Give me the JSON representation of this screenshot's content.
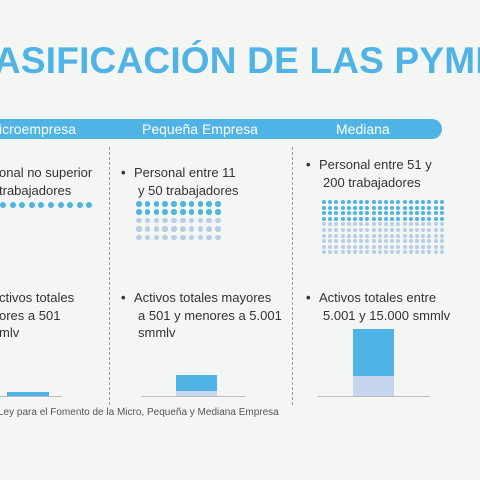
{
  "title": "ASIFICACIÓN DE LAS PYME",
  "columns": [
    {
      "header": "icroempresa",
      "personal_lines": [
        "onal no superior",
        "trabajadores"
      ],
      "dot_count": 10,
      "activos_lines": [
        "ctivos totales",
        "ores a 501",
        "mlv"
      ]
    },
    {
      "header": "Pequeña Empresa",
      "personal_lines": [
        "Personal entre 11",
        "y 50 trabajadores"
      ],
      "dot_count": 50,
      "activos_lines": [
        "Activos totales mayores",
        "a 501 y menores a 5.001",
        "smmlv"
      ]
    },
    {
      "header": "Mediana",
      "personal_lines": [
        "Personal entre 51 y",
        "200 trabajadores"
      ],
      "dot_count": 200,
      "activos_lines": [
        "Activos totales entre",
        "5.001 y 15.000 smmlv"
      ]
    }
  ],
  "footnote": "Ley para el Fomento de la Micro, Pequeña y Mediana Empresa",
  "colors": {
    "accent": "#4fb3e6",
    "dot_light": "#b9cde9",
    "bar_light": "#c7d6ee",
    "background": "#f3f6f2"
  },
  "bullet_glyph": "•"
}
